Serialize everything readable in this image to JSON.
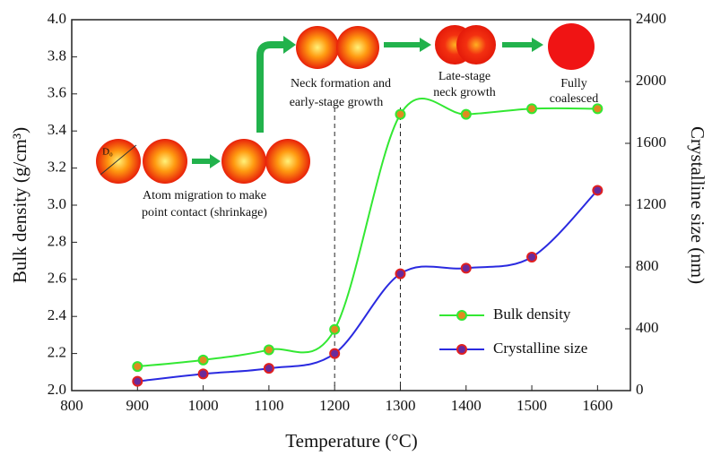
{
  "chart_data": {
    "type": "line",
    "x_label": "Temperature (°C)",
    "y_label": "Bulk density (g/cm³)",
    "y2_label": "Crystalline size (nm)",
    "x": [
      900,
      1000,
      1100,
      1200,
      1300,
      1400,
      1500,
      1600
    ],
    "series": [
      {
        "name": "Bulk density",
        "color": "#33e833",
        "marker_color": "#e08a20",
        "values": [
          2.13,
          2.165,
          2.22,
          2.33,
          3.49,
          3.49,
          3.52,
          3.52
        ]
      },
      {
        "name": "Crystalline size",
        "color": "#2a2ae0",
        "marker_color": "#6a2a9a",
        "axis": "y2",
        "values": [
          60,
          108,
          144,
          240,
          756,
          792,
          864,
          1296
        ]
      }
    ],
    "xlim": [
      800,
      1650
    ],
    "xticks": [
      800,
      900,
      1000,
      1100,
      1200,
      1300,
      1400,
      1500,
      1600
    ],
    "ylim": [
      2.0,
      4.0
    ],
    "yticks": [
      {
        "value": 2.0,
        "label": "2.0"
      },
      2.2,
      2.4,
      2.6,
      2.8,
      {
        "value": 3.0,
        "label": "3.0"
      },
      3.2,
      3.4,
      3.6,
      3.8,
      {
        "value": 4.0,
        "label": "4.0"
      }
    ],
    "y2lim": [
      0,
      2400
    ],
    "y2ticks": [
      0,
      400,
      800,
      1200,
      1600,
      2000,
      2400
    ],
    "vlines": [
      1200,
      1300
    ],
    "annotations": [
      "Neck formation and",
      "early-stage growth",
      "Late-stage",
      "neck growth",
      "Fully",
      "coalesced",
      "Atom migration to make",
      "point contact (shrinkage)",
      "D₀"
    ]
  }
}
